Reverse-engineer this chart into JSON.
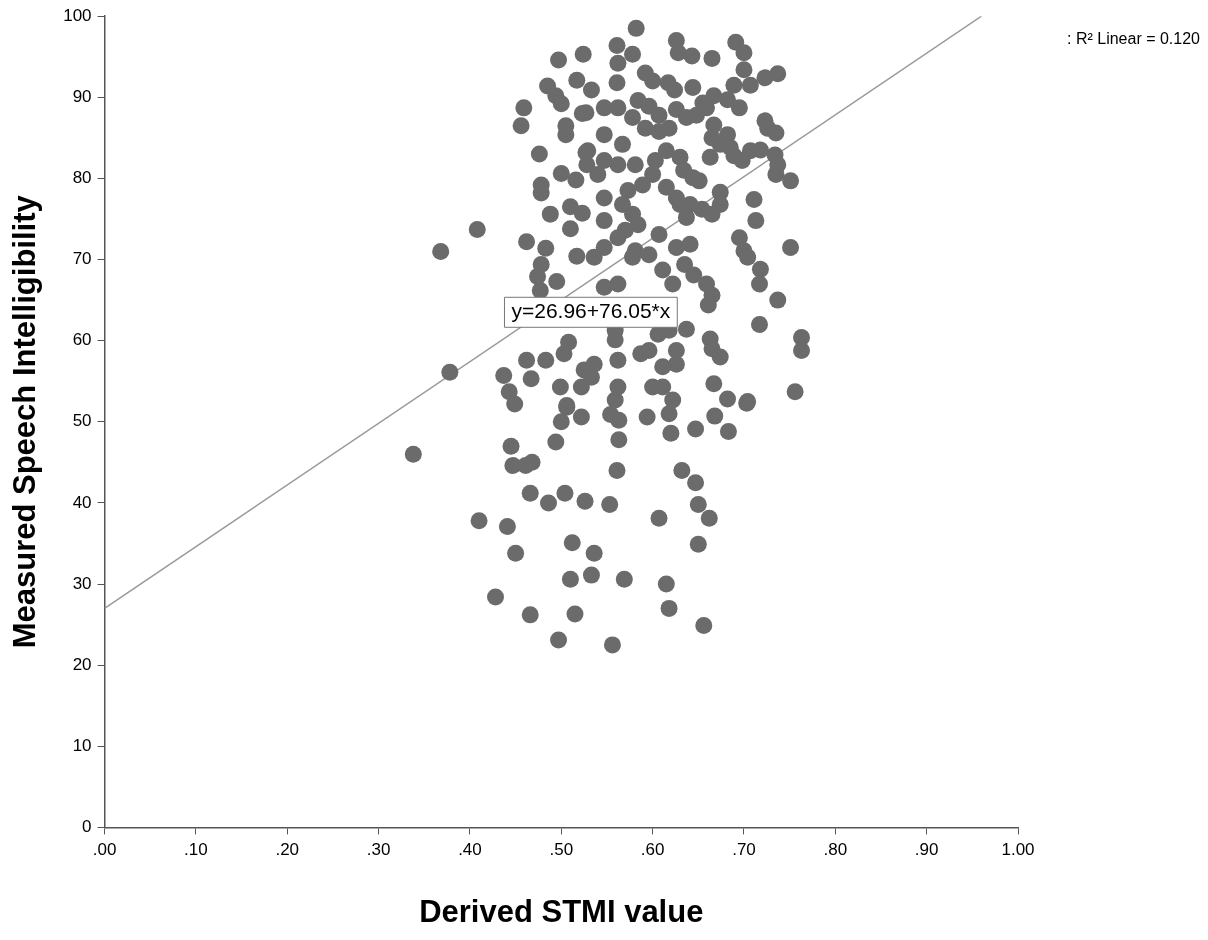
{
  "chart_data": {
    "type": "scatter",
    "xlabel": "Derived STMI value",
    "ylabel": "Measured Speech Intelligibility",
    "xlim": [
      0,
      1
    ],
    "ylim": [
      0,
      100
    ],
    "xticks": [
      {
        "value": 0,
        "label": ".00"
      },
      {
        "value": 0.1,
        "label": ".10"
      },
      {
        "value": 0.2,
        "label": ".20"
      },
      {
        "value": 0.3,
        "label": ".30"
      },
      {
        "value": 0.4,
        "label": ".40"
      },
      {
        "value": 0.5,
        "label": ".50"
      },
      {
        "value": 0.6,
        "label": ".60"
      },
      {
        "value": 0.7,
        "label": ".70"
      },
      {
        "value": 0.8,
        "label": ".80"
      },
      {
        "value": 0.9,
        "label": ".90"
      },
      {
        "value": 1,
        "label": "1.00"
      }
    ],
    "yticks": [
      0,
      10,
      20,
      30,
      40,
      50,
      60,
      70,
      80,
      90,
      100
    ],
    "grid": false,
    "legend": false,
    "marker": "circle",
    "annotations": [
      "y=26.96+76.05*x",
      ": R² Linear = 0.120"
    ],
    "series": [
      {
        "color": "#6b6b6b",
        "x": [
          0.338,
          0.445,
          0.447,
          0.461,
          0.468,
          0.494,
          0.5,
          0.506,
          0.522,
          0.554,
          0.563,
          0.563,
          0.594,
          0.62,
          0.647,
          0.668,
          0.683,
          0.703,
          0.561,
          0.632,
          0.647,
          0.65,
          0.662,
          0.607,
          0.65,
          0.466,
          0.486,
          0.504,
          0.526,
          0.553,
          0.41,
          0.441,
          0.45,
          0.512,
          0.536,
          0.51,
          0.533,
          0.569,
          0.615,
          0.428,
          0.466,
          0.515,
          0.618,
          0.656,
          0.497,
          0.556,
          0.368,
          0.408,
          0.462,
          0.378,
          0.497,
          0.524,
          0.485,
          0.494,
          0.5,
          0.517,
          0.523,
          0.459,
          0.456,
          0.505,
          0.505,
          0.476,
          0.5,
          0.516,
          0.478,
          0.478,
          0.488,
          0.51,
          0.523,
          0.51,
          0.483,
          0.478,
          0.474,
          0.495,
          0.517,
          0.527,
          0.528,
          0.477,
          0.508,
          0.503,
          0.483,
          0.462,
          0.437,
          0.467,
          0.443,
          0.449,
          0.499,
          0.506,
          0.525,
          0.522,
          0.582,
          0.561,
          0.562,
          0.578,
          0.626,
          0.628,
          0.643,
          0.665,
          0.691,
          0.7,
          0.737,
          0.723,
          0.707,
          0.7,
          0.689,
          0.682,
          0.695,
          0.667,
          0.655,
          0.644,
          0.624,
          0.617,
          0.592,
          0.6,
          0.561,
          0.533,
          0.547,
          0.562,
          0.584,
          0.596,
          0.607,
          0.626,
          0.637,
          0.648,
          0.659,
          0.618,
          0.592,
          0.578,
          0.527,
          0.607,
          0.667,
          0.682,
          0.665,
          0.674,
          0.685,
          0.663,
          0.689,
          0.707,
          0.726,
          0.735,
          0.723,
          0.734,
          0.737,
          0.735,
          0.751,
          0.718,
          0.698,
          0.711,
          0.713,
          0.751,
          0.695,
          0.7,
          0.704,
          0.718,
          0.717,
          0.737,
          0.717,
          0.763,
          0.763,
          0.756,
          0.674,
          0.674,
          0.665,
          0.654,
          0.641,
          0.63,
          0.637,
          0.626,
          0.615,
          0.6,
          0.589,
          0.573,
          0.581,
          0.603,
          0.615,
          0.63,
          0.644,
          0.651,
          0.634,
          0.567,
          0.547,
          0.529,
          0.54,
          0.547,
          0.562,
          0.567,
          0.547,
          0.578,
          0.584,
          0.57,
          0.547,
          0.547,
          0.536,
          0.562,
          0.581,
          0.578,
          0.596,
          0.607,
          0.626,
          0.641,
          0.635,
          0.645,
          0.659,
          0.665,
          0.661,
          0.611,
          0.622,
          0.562,
          0.547,
          0.559,
          0.559,
          0.587,
          0.596,
          0.618,
          0.637,
          0.606,
          0.626,
          0.626,
          0.663,
          0.674,
          0.665,
          0.611,
          0.562,
          0.536,
          0.533,
          0.667,
          0.682,
          0.704,
          0.611,
          0.622,
          0.6,
          0.562,
          0.559,
          0.618
        ],
        "values": [
          46,
          47,
          44.6,
          44.6,
          45,
          47.5,
          50,
          52,
          50.6,
          50.9,
          50.2,
          47.8,
          50.6,
          48.6,
          49.1,
          50.7,
          48.8,
          52.3,
          44,
          44,
          42.5,
          39.8,
          38.1,
          38.1,
          34.9,
          41.2,
          40,
          41.2,
          40.2,
          39.8,
          37.8,
          37.1,
          33.8,
          35.1,
          33.8,
          30.6,
          31.1,
          30.6,
          30,
          28.4,
          26.2,
          26.3,
          27,
          24.9,
          23.1,
          22.5,
          71,
          73.7,
          72.2,
          56.1,
          94.6,
          95.3,
          91.4,
          90.2,
          89.2,
          92.1,
          88,
          88.7,
          86.5,
          86.5,
          85.4,
          83,
          80.6,
          79.8,
          79.2,
          78.2,
          75.6,
          76.5,
          75.7,
          73.8,
          71.4,
          69.4,
          67.9,
          67.3,
          70.4,
          83.2,
          81.7,
          66.2,
          59.8,
          58.4,
          57.6,
          57.6,
          55.7,
          55.3,
          53.7,
          52.2,
          54.3,
          51.8,
          56.4,
          54.3,
          98.5,
          96.4,
          94.2,
          95.3,
          97,
          95.5,
          95.1,
          94.8,
          96.8,
          95.5,
          92.9,
          92.4,
          91.5,
          93.4,
          91.5,
          89.7,
          88.7,
          90.2,
          89.3,
          91.2,
          90.9,
          91.8,
          93,
          92,
          91.8,
          90.9,
          88.7,
          88.7,
          89.6,
          88.9,
          87.8,
          88.5,
          87.5,
          87.8,
          88.7,
          86.2,
          86.2,
          87.5,
          88.1,
          85.8,
          86.6,
          85.4,
          85,
          84.2,
          83.8,
          82.6,
          82.8,
          83.4,
          86.2,
          85.6,
          87.1,
          82.9,
          81.7,
          80.5,
          79.7,
          83.5,
          82.2,
          77.4,
          74.8,
          71.5,
          72.7,
          71.1,
          70.3,
          68.8,
          67,
          65,
          62,
          60.4,
          58.8,
          53.7,
          78.3,
          76.8,
          75.6,
          76.2,
          76.8,
          76.8,
          75.2,
          77.6,
          78.9,
          80.5,
          79.2,
          78.5,
          81.7,
          82.2,
          83.4,
          82.6,
          80.1,
          79.7,
          81,
          84.2,
          85.4,
          83.4,
          80.5,
          82.2,
          81.7,
          76.8,
          77.6,
          75.6,
          74.3,
          73.6,
          74.8,
          71.5,
          70.3,
          72.7,
          71.1,
          70.3,
          70.6,
          73.1,
          71.5,
          71.9,
          69.4,
          68.1,
          67,
          65.6,
          64.4,
          68.7,
          67,
          67,
          66.6,
          61.3,
          60.1,
          58.4,
          58.8,
          61.3,
          61.4,
          60.8,
          58.8,
          57.1,
          60.2,
          58,
          59,
          56.8,
          57.6,
          57.1,
          55.5,
          54.7,
          52.8,
          52.5,
          54.3,
          52.7,
          54.3,
          54.3,
          52.7,
          51
        ]
      },
      {
        "type": "line",
        "color": "#999999",
        "marker": "none",
        "x": [
          0,
          0.96
        ],
        "values": [
          27,
          100
        ]
      }
    ]
  }
}
